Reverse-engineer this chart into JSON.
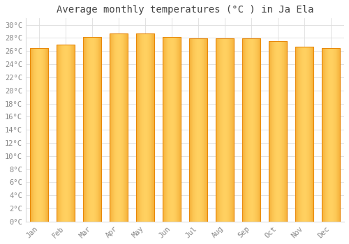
{
  "title": "Average monthly temperatures (°C ) in Ja Ela",
  "months": [
    "Jan",
    "Feb",
    "Mar",
    "Apr",
    "May",
    "Jun",
    "Jul",
    "Aug",
    "Sep",
    "Oct",
    "Nov",
    "Dec"
  ],
  "values": [
    26.5,
    27.0,
    28.2,
    28.7,
    28.7,
    28.2,
    27.9,
    27.9,
    27.9,
    27.5,
    26.7,
    26.5
  ],
  "bar_color_center": "#FFD060",
  "bar_color_edge": "#E8890A",
  "background_color": "#FFFFFF",
  "plot_bg_color": "#FFFFFF",
  "ylim": [
    0,
    31
  ],
  "yticks": [
    0,
    2,
    4,
    6,
    8,
    10,
    12,
    14,
    16,
    18,
    20,
    22,
    24,
    26,
    28,
    30
  ],
  "grid_color": "#DDDDDD",
  "title_fontsize": 10,
  "tick_fontsize": 7.5,
  "font_color": "#888888",
  "title_color": "#444444"
}
